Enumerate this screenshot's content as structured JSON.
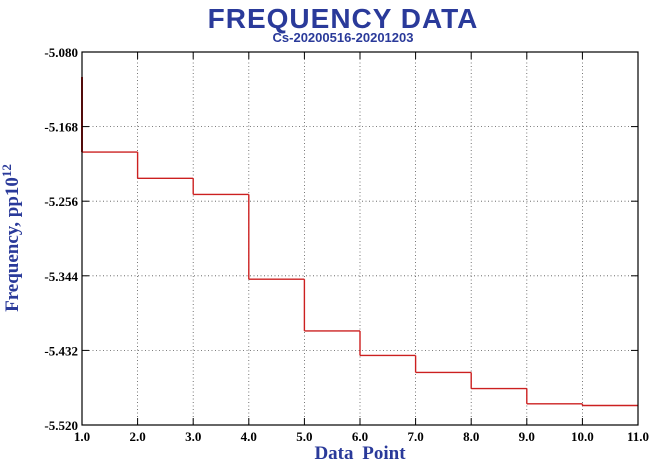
{
  "chart_data": {
    "type": "line",
    "step": true,
    "title": "FREQUENCY DATA",
    "subtitle": "Cs-20200516-20201203",
    "xlabel": "Data Point",
    "ylabel": "Frequency, pp10",
    "ylabel_superscript": "12",
    "xlim": [
      1.0,
      11.0
    ],
    "ylim": [
      -5.52,
      -5.08
    ],
    "x_ticks": [
      "1.0",
      "2.0",
      "3.0",
      "4.0",
      "5.0",
      "6.0",
      "7.0",
      "8.0",
      "9.0",
      "10.0",
      "11.0"
    ],
    "y_ticks": [
      "-5.080",
      "-5.168",
      "-5.256",
      "-5.344",
      "-5.432",
      "-5.520"
    ],
    "grid": true,
    "series": [
      {
        "color": "#cc2020",
        "x": [
          1,
          2,
          3,
          4,
          5,
          6,
          7,
          8,
          9,
          10
        ],
        "y": [
          -5.198,
          -5.229,
          -5.248,
          -5.348,
          -5.409,
          -5.438,
          -5.458,
          -5.477,
          -5.495,
          -5.497
        ]
      }
    ]
  }
}
